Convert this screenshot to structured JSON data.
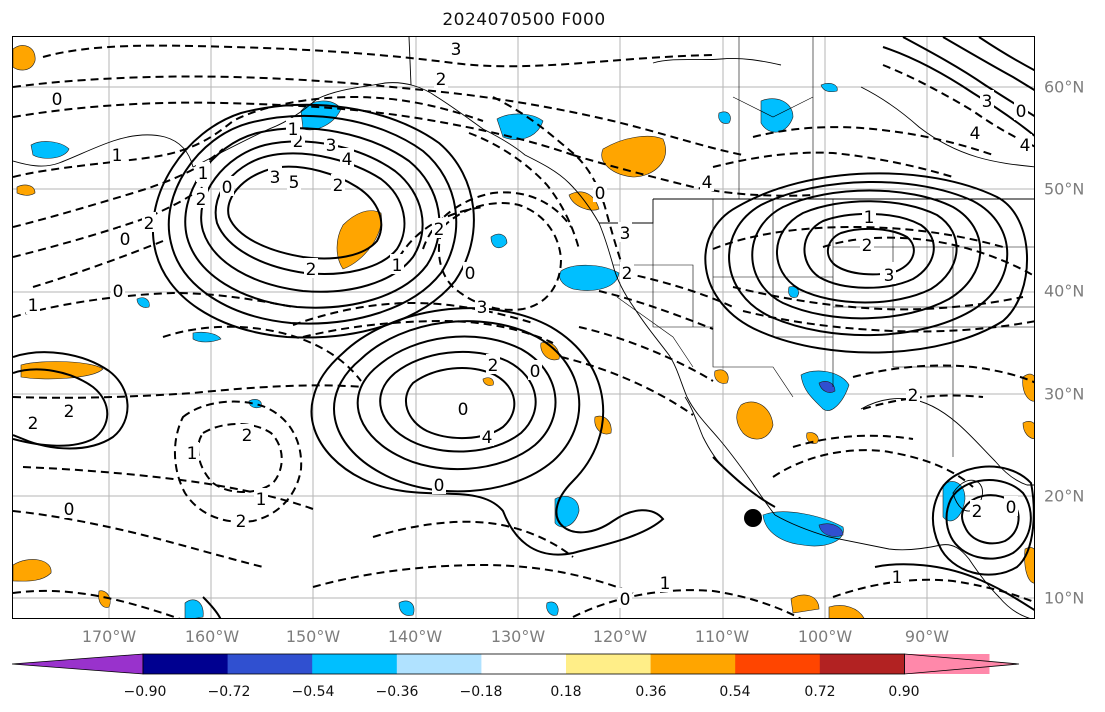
{
  "title": "2024070500 F000",
  "lat_labels": [
    "60°N",
    "50°N",
    "40°N",
    "30°N",
    "20°N",
    "10°N"
  ],
  "lon_labels": [
    "170°W",
    "160°W",
    "150°W",
    "140°W",
    "130°W",
    "120°W",
    "110°W",
    "100°W",
    "90°W"
  ],
  "colorbar": {
    "ticks": [
      "−0.90",
      "−0.72",
      "−0.54",
      "−0.36",
      "−0.18",
      "0.18",
      "0.36",
      "0.54",
      "0.72",
      "0.90"
    ],
    "colors": {
      "under": "#9932cc",
      "bins": [
        "#000090",
        "#3050d0",
        "#00bfff",
        "#b0e2ff",
        "#ffffff",
        "#ffee88",
        "#ffa500",
        "#ff4500",
        "#b22222",
        "#ff88aa"
      ],
      "over": "#ff88aa"
    }
  },
  "contour_labels": [
    "3",
    "2",
    "2",
    "3",
    "1",
    "2",
    "3",
    "4",
    "5",
    "0",
    "2",
    "0",
    "1",
    "2",
    "0",
    "3",
    "0",
    "2",
    "0",
    "4",
    "3",
    "4",
    "1",
    "3",
    "2",
    "3",
    "4",
    "0",
    "2",
    "2",
    "2",
    "1",
    "2",
    "0",
    "1",
    "2",
    "0",
    "1",
    "0",
    "1",
    "2",
    "0",
    "0",
    "1",
    "2",
    "2",
    "0",
    "1",
    "2",
    "0",
    "1",
    "3",
    "4"
  ],
  "marker": {
    "label": "storm-center-dot"
  }
}
